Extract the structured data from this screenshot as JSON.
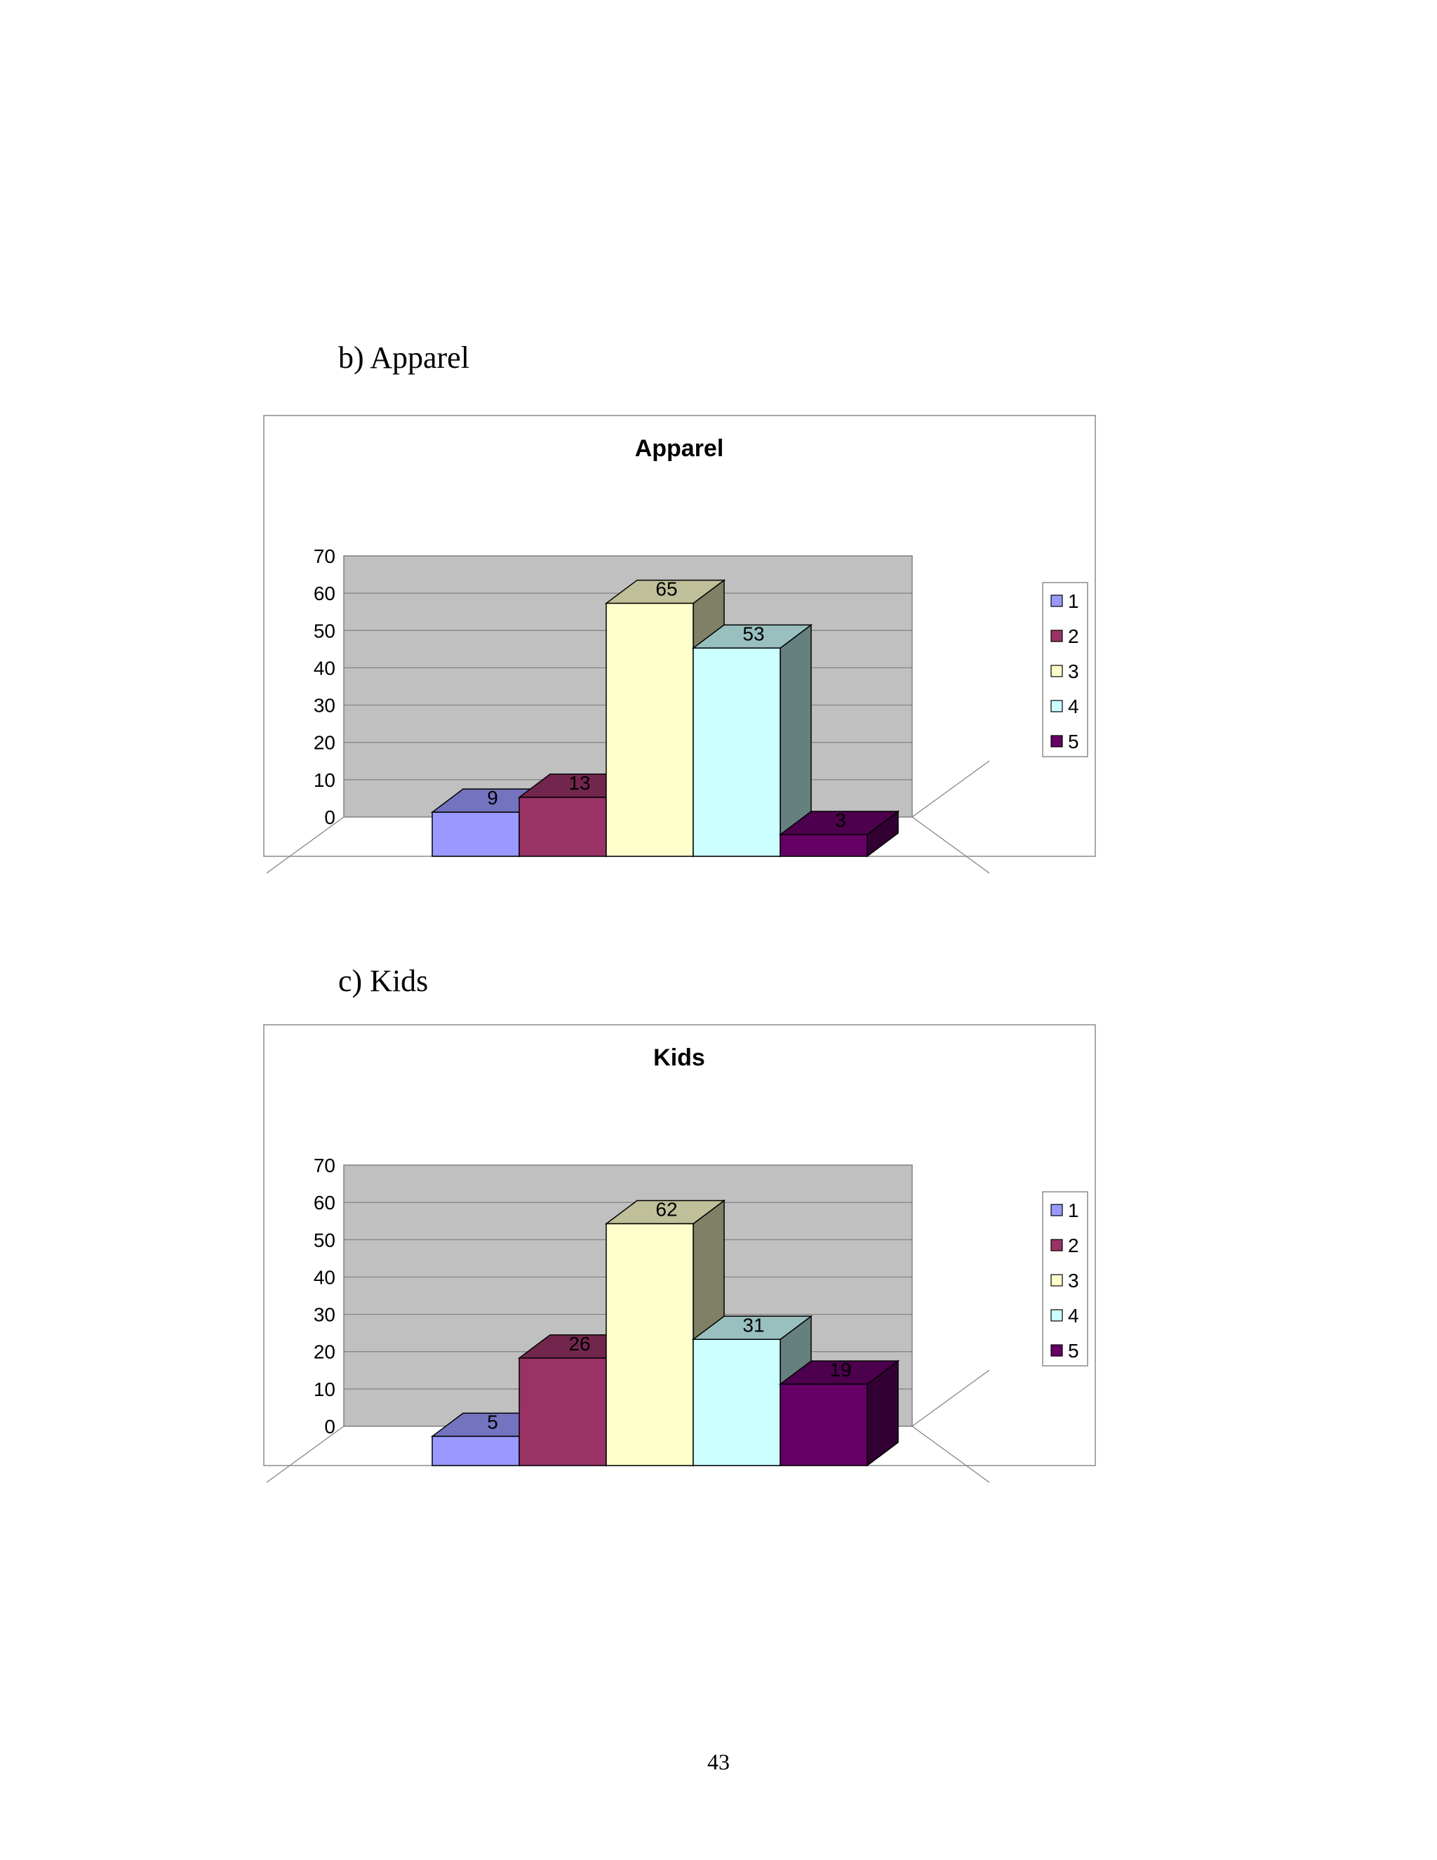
{
  "sections": [
    {
      "heading": "b)  Apparel"
    },
    {
      "heading": "c)  Kids"
    }
  ],
  "page_number": "43",
  "chart_data": [
    {
      "type": "bar",
      "title": "Apparel",
      "categories": [
        "1",
        "2",
        "3",
        "4",
        "5"
      ],
      "values": [
        9,
        13,
        65,
        53,
        3
      ],
      "data_labels": [
        "9",
        "13",
        "65",
        "53",
        "3"
      ],
      "ylim": [
        0,
        70
      ],
      "yticks": [
        "0",
        "10",
        "20",
        "30",
        "40",
        "50",
        "60",
        "70"
      ],
      "legend": [
        "1",
        "2",
        "3",
        "4",
        "5"
      ],
      "legend_position": "right",
      "grid": true,
      "style": "3d-column",
      "colors": [
        "#9999ff",
        "#993366",
        "#ffffcc",
        "#ccffff",
        "#660066"
      ],
      "plot_background": "#c0c0c0"
    },
    {
      "type": "bar",
      "title": "Kids",
      "categories": [
        "1",
        "2",
        "3",
        "4",
        "5"
      ],
      "values": [
        5,
        26,
        62,
        31,
        19
      ],
      "data_labels": [
        "5",
        "26",
        "62",
        "31",
        "19"
      ],
      "ylim": [
        0,
        70
      ],
      "yticks": [
        "0",
        "10",
        "20",
        "30",
        "40",
        "50",
        "60",
        "70"
      ],
      "legend": [
        "1",
        "2",
        "3",
        "4",
        "5"
      ],
      "legend_position": "right",
      "grid": true,
      "style": "3d-column",
      "colors": [
        "#9999ff",
        "#993366",
        "#ffffcc",
        "#ccffff",
        "#660066"
      ],
      "plot_background": "#c0c0c0"
    }
  ]
}
